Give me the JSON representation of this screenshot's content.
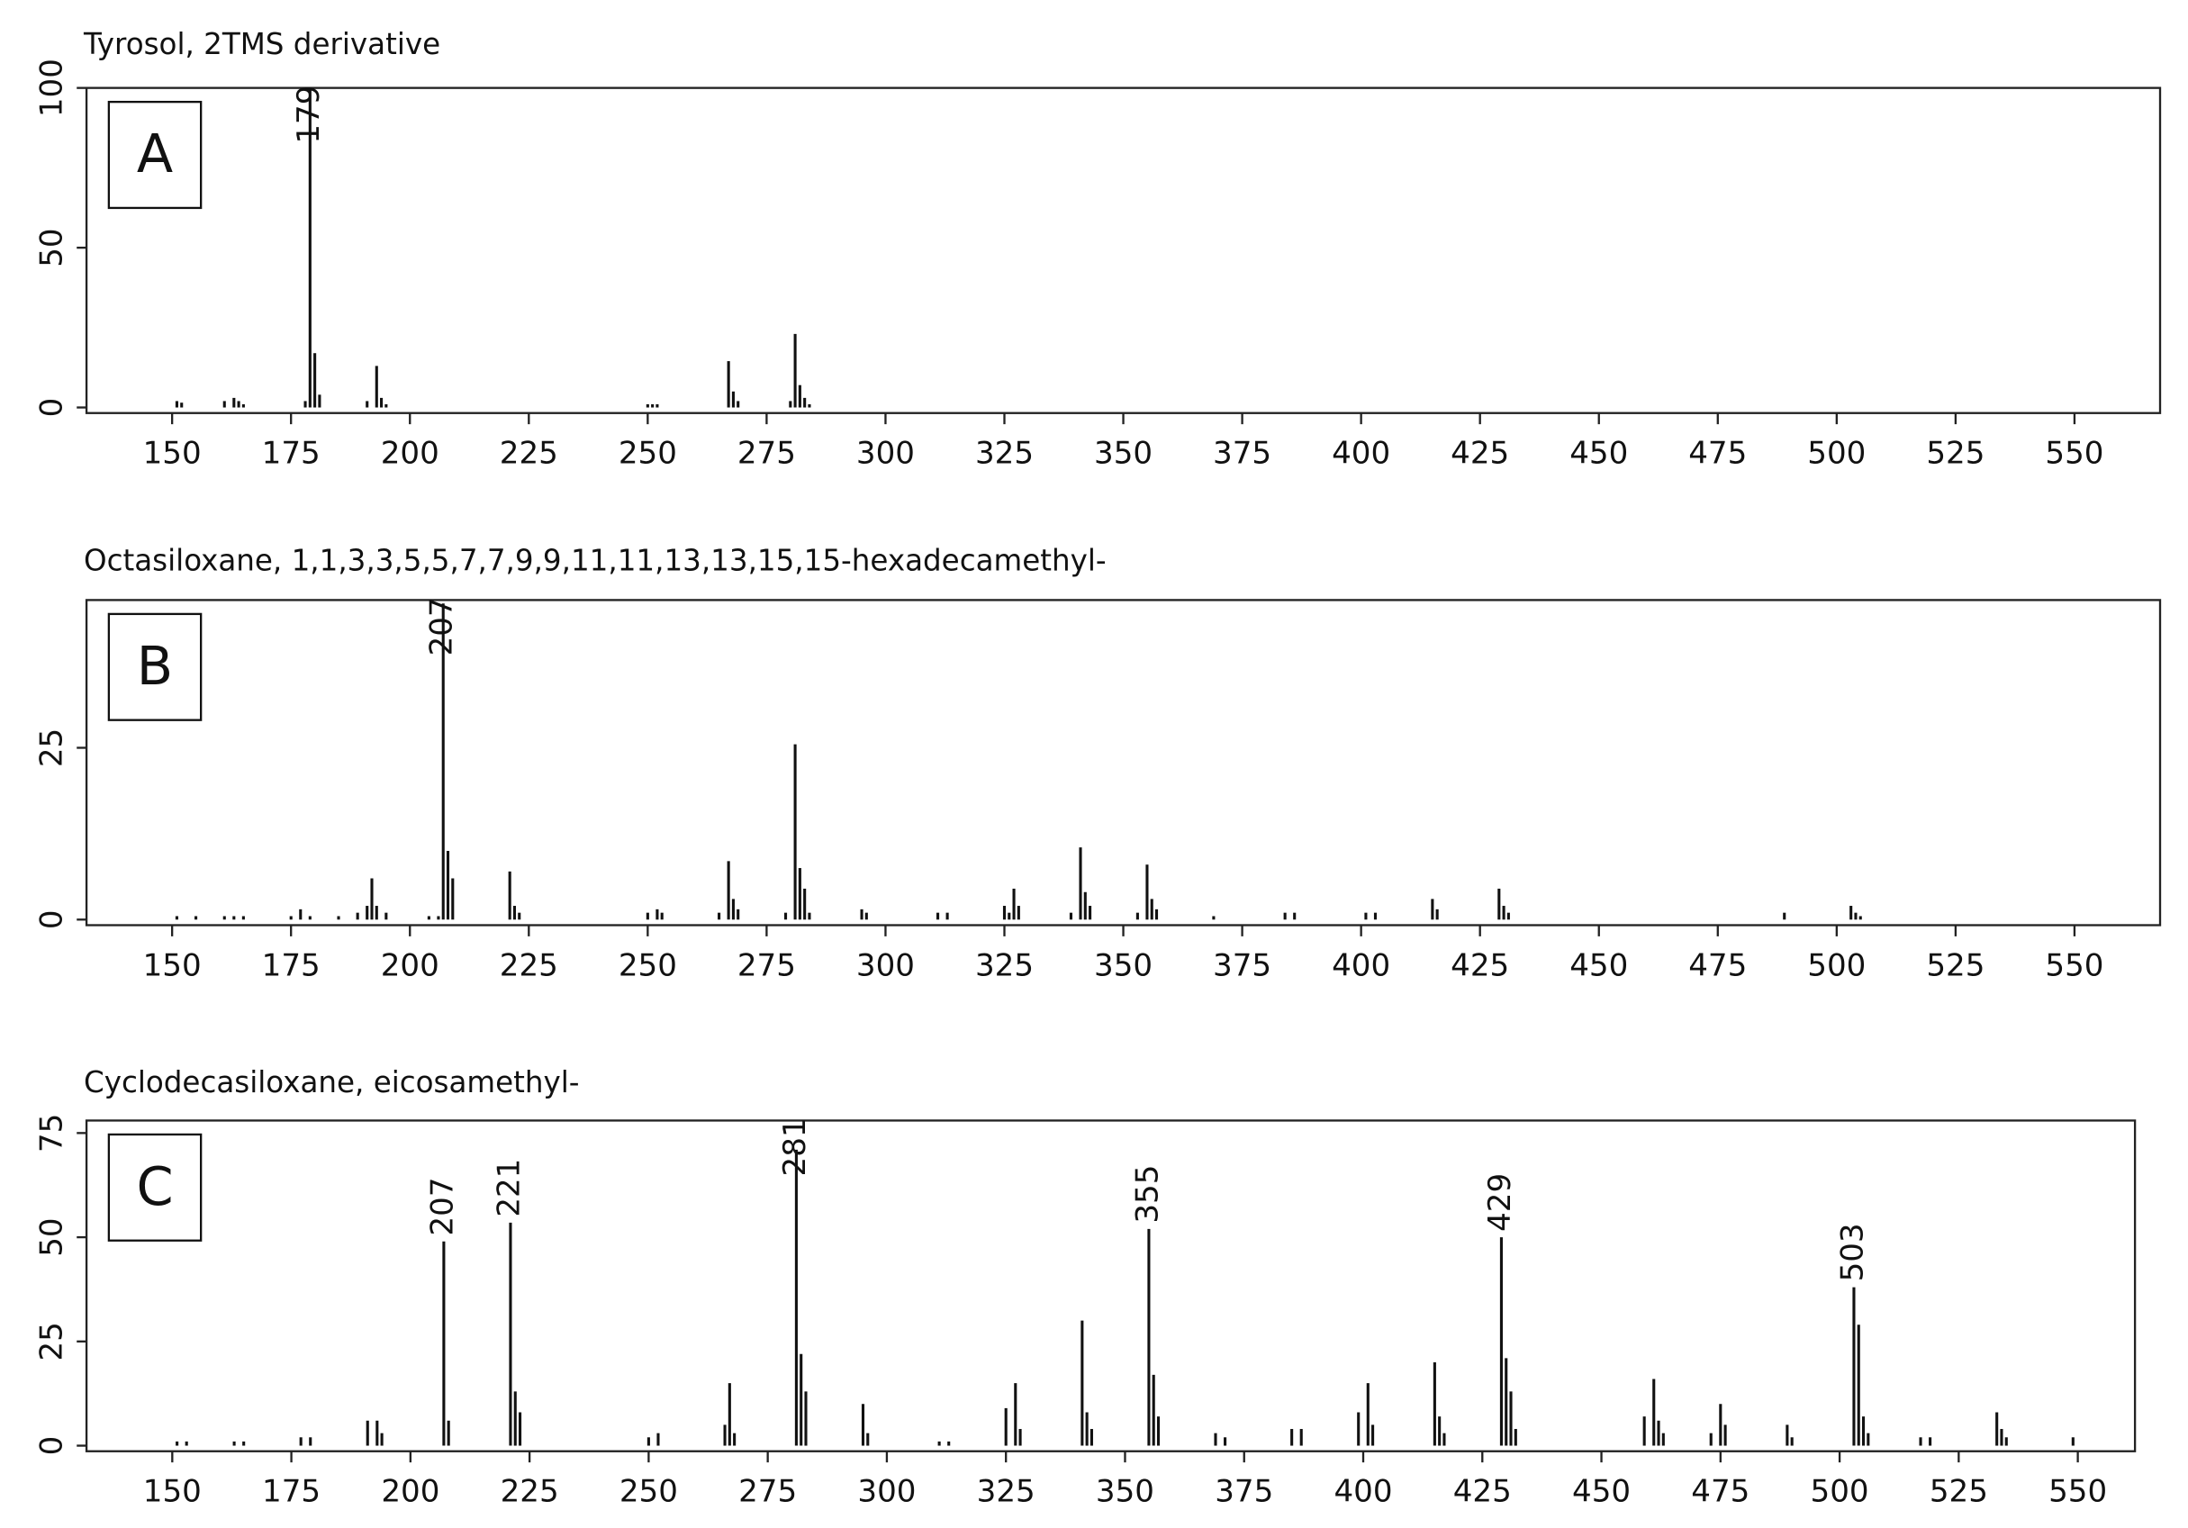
{
  "chart_data": [
    {
      "type": "bar",
      "title": "Tyrosol, 2TMS derivative",
      "panel_label": "A",
      "color": "#111111",
      "x": [
        151,
        152,
        161,
        163,
        164,
        165,
        178,
        179,
        180,
        181,
        191,
        193,
        194,
        195,
        250,
        251,
        252,
        267,
        268,
        269,
        280,
        281,
        282,
        283,
        284
      ],
      "values": [
        2,
        1.5,
        2,
        3,
        2,
        1,
        2,
        100,
        17,
        4,
        2,
        13,
        3,
        1,
        1,
        1,
        1,
        14.5,
        5,
        2,
        2,
        23,
        7,
        3,
        1
      ],
      "xlim": [
        132,
        568
      ],
      "xticks": [
        150,
        175,
        200,
        225,
        250,
        275,
        300,
        325,
        350,
        375,
        400,
        425,
        450,
        475,
        500,
        525,
        550
      ],
      "ylim": [
        0,
        100
      ],
      "yticks": [
        0,
        50,
        100
      ],
      "peak_labels": [
        179
      ]
    },
    {
      "type": "bar",
      "title": "Octasiloxane, 1,1,3,3,5,5,7,7,9,9,11,11,13,13,15,15-hexadecamethyl-",
      "panel_label": "B",
      "color": "#111111",
      "x": [
        151,
        155,
        161,
        163,
        165,
        175,
        177,
        179,
        185,
        189,
        191,
        192,
        193,
        195,
        204,
        206,
        207,
        208,
        209,
        221,
        222,
        223,
        250,
        252,
        253,
        265,
        267,
        268,
        269,
        279,
        281,
        282,
        283,
        284,
        295,
        296,
        311,
        313,
        325,
        326,
        327,
        328,
        339,
        341,
        342,
        343,
        353,
        355,
        356,
        357,
        369,
        384,
        386,
        401,
        403,
        415,
        416,
        429,
        430,
        431,
        489,
        503,
        504,
        505
      ],
      "values": [
        0.5,
        0.5,
        0.5,
        0.5,
        0.5,
        0.5,
        1.5,
        0.5,
        0.5,
        1,
        2,
        6,
        2,
        1,
        0.5,
        0.5,
        46,
        10,
        6,
        7,
        2,
        1,
        1,
        1.5,
        1,
        1,
        8.5,
        3,
        1.5,
        1,
        25.5,
        7.5,
        4.5,
        1,
        1.5,
        1,
        1,
        1,
        2,
        1,
        4.5,
        2,
        1,
        10.5,
        4,
        2,
        1,
        8,
        3,
        1.5,
        0.5,
        1,
        1,
        1,
        1,
        3,
        1.5,
        4.5,
        2,
        1,
        1,
        2,
        1,
        0.5
      ],
      "xlim": [
        132,
        568
      ],
      "xticks": [
        150,
        175,
        200,
        225,
        250,
        275,
        300,
        325,
        350,
        375,
        400,
        425,
        450,
        475,
        500,
        525,
        550
      ],
      "ylim": [
        0,
        46.5
      ],
      "yticks": [
        0,
        25
      ],
      "peak_labels": [
        207
      ]
    },
    {
      "type": "bar",
      "title": "Cyclodecasiloxane, eicosamethyl-",
      "panel_label": "C",
      "color": "#111111",
      "x": [
        151,
        153,
        163,
        165,
        177,
        179,
        191,
        193,
        194,
        207,
        208,
        221,
        222,
        223,
        250,
        252,
        266,
        267,
        268,
        281,
        282,
        283,
        295,
        296,
        311,
        313,
        325,
        327,
        328,
        341,
        342,
        343,
        355,
        356,
        357,
        369,
        371,
        385,
        387,
        399,
        401,
        402,
        415,
        416,
        417,
        429,
        430,
        431,
        432,
        459,
        461,
        462,
        463,
        473,
        475,
        476,
        489,
        490,
        503,
        504,
        505,
        506,
        517,
        519,
        533,
        534,
        535,
        549
      ],
      "values": [
        1,
        1,
        1,
        1,
        2,
        2,
        6,
        6,
        3,
        49,
        6,
        53.5,
        13,
        8,
        2,
        3,
        5,
        15,
        3,
        71,
        22,
        13,
        10,
        3,
        1,
        1,
        9,
        15,
        4,
        30,
        8,
        4,
        52,
        17,
        7,
        3,
        2,
        4,
        4,
        8,
        15,
        5,
        20,
        7,
        3,
        50,
        21,
        13,
        4,
        7,
        16,
        6,
        3,
        3,
        10,
        5,
        5,
        2,
        38,
        29,
        7,
        3,
        2,
        2,
        8,
        4,
        2,
        2
      ],
      "xlim": [
        132,
        562
      ],
      "xticks": [
        150,
        175,
        200,
        225,
        250,
        275,
        300,
        325,
        350,
        375,
        400,
        425,
        450,
        475,
        500,
        525,
        550
      ],
      "ylim": [
        0,
        78
      ],
      "yticks": [
        0,
        25,
        50,
        75
      ],
      "peak_labels": [
        207,
        221,
        281,
        355,
        429,
        503
      ]
    }
  ]
}
